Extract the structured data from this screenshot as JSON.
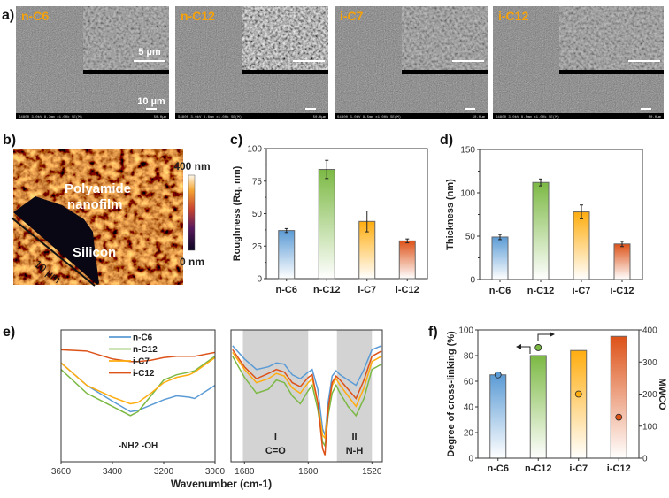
{
  "panel_labels": {
    "a": "a)",
    "b": "b)",
    "c": "c)",
    "d": "d)",
    "e": "e)",
    "f": "f)"
  },
  "sem": {
    "panels": [
      {
        "label": "n-C6",
        "info": "S4800 3.0kV 8.7mm x1.00k SE(M)",
        "scale": "50.0µm"
      },
      {
        "label": "n-C12",
        "info": "S4800 3.0kV 8.6mm x1.00k SE(M)",
        "scale": "50.0µm"
      },
      {
        "label": "i-C7",
        "info": "S4800 3.0kV 8.5mm x1.00k SE(M)",
        "scale": "50.0µm"
      },
      {
        "label": "i-C12",
        "info": "S4800 3.0kV 8.5mm x1.00k SE(M)",
        "scale": "50.0µm"
      }
    ],
    "inset_scale_label": "5 µm",
    "main_scale_label": "10 µm"
  },
  "afm": {
    "film_label_1": "Polyamide",
    "film_label_2": "nanofilm",
    "substrate_label": "Silicon",
    "scale_label": "10 µm",
    "colorbar_max": "400 nm",
    "colorbar_min": "0 nm"
  },
  "colors": {
    "n-C6": "#5b9bd5",
    "n-C12": "#7cb944",
    "i-C7": "#ffad0f",
    "i-C12": "#dd5218"
  },
  "chart_data": [
    {
      "id": "c",
      "type": "bar",
      "categories": [
        "n-C6",
        "n-C12",
        "i-C7",
        "i-C12"
      ],
      "values": [
        37,
        84,
        44,
        29
      ],
      "errors": [
        1.5,
        7,
        8,
        1.5
      ],
      "ylabel": "Roughness (Rq, nm)",
      "ylim": [
        0,
        100
      ],
      "yticks": [
        0,
        25,
        50,
        75,
        100
      ]
    },
    {
      "id": "d",
      "type": "bar",
      "categories": [
        "n-C6",
        "n-C12",
        "i-C7",
        "i-C12"
      ],
      "values": [
        49,
        112,
        78,
        41
      ],
      "errors": [
        3,
        4,
        8,
        3
      ],
      "ylabel": "Thickness (nm)",
      "ylim": [
        0,
        150
      ],
      "yticks": [
        0,
        50,
        100,
        150
      ]
    },
    {
      "id": "e",
      "type": "line",
      "xlabel": "Wavenumber (cm-1)",
      "legend": [
        "n-C6",
        "n-C12",
        "i-C7",
        "i-C12"
      ],
      "legend_position": "top-left",
      "left": {
        "xlim": [
          3600,
          3000
        ],
        "xticks": [
          3600,
          3400,
          3200,
          3000
        ],
        "annotation": "-NH2  -OH",
        "x": [
          3600,
          3500,
          3400,
          3330,
          3300,
          3250,
          3200,
          3150,
          3100,
          3080,
          3000
        ],
        "series": [
          {
            "name": "n-C6",
            "values": [
              0.75,
              0.58,
              0.46,
              0.38,
              0.39,
              0.43,
              0.47,
              0.5,
              0.49,
              0.48,
              0.58
            ]
          },
          {
            "name": "n-C12",
            "values": [
              0.7,
              0.52,
              0.42,
              0.35,
              0.38,
              0.5,
              0.62,
              0.66,
              0.68,
              0.69,
              0.8
            ]
          },
          {
            "name": "i-C7",
            "values": [
              0.75,
              0.58,
              0.49,
              0.44,
              0.45,
              0.52,
              0.6,
              0.64,
              0.66,
              0.68,
              0.79
            ]
          },
          {
            "name": "i-C12",
            "values": [
              0.85,
              0.84,
              0.78,
              0.76,
              0.76,
              0.77,
              0.79,
              0.8,
              0.8,
              0.8,
              0.83
            ]
          }
        ]
      },
      "right": {
        "xlim": [
          1697,
          1507
        ],
        "xticks": [
          1680,
          1600,
          1520
        ],
        "bands": [
          {
            "range": [
              1682,
              1600
            ],
            "label": "I",
            "sublabel": "C=O"
          },
          {
            "range": [
              1564,
              1520
            ],
            "label": "II",
            "sublabel": "N-H"
          }
        ],
        "x": [
          1695,
          1680,
          1665,
          1650,
          1640,
          1630,
          1620,
          1610,
          1600,
          1595,
          1588,
          1582,
          1579,
          1575,
          1570,
          1565,
          1560,
          1550,
          1540,
          1530,
          1520,
          1508
        ],
        "series": [
          {
            "name": "n-C6",
            "values": [
              0.88,
              0.78,
              0.7,
              0.72,
              0.75,
              0.74,
              0.66,
              0.63,
              0.68,
              0.7,
              0.55,
              0.25,
              0.2,
              0.45,
              0.65,
              0.69,
              0.66,
              0.62,
              0.58,
              0.7,
              0.85,
              0.88
            ]
          },
          {
            "name": "n-C12",
            "values": [
              0.8,
              0.64,
              0.52,
              0.55,
              0.62,
              0.6,
              0.5,
              0.44,
              0.54,
              0.58,
              0.4,
              0.15,
              0.12,
              0.35,
              0.52,
              0.58,
              0.52,
              0.42,
              0.35,
              0.48,
              0.7,
              0.74
            ]
          },
          {
            "name": "i-C7",
            "values": [
              0.83,
              0.7,
              0.6,
              0.63,
              0.67,
              0.65,
              0.56,
              0.52,
              0.6,
              0.63,
              0.45,
              0.2,
              0.18,
              0.4,
              0.58,
              0.63,
              0.58,
              0.5,
              0.42,
              0.56,
              0.76,
              0.8
            ]
          },
          {
            "name": "i-C12",
            "values": [
              0.85,
              0.72,
              0.63,
              0.67,
              0.7,
              0.68,
              0.6,
              0.57,
              0.64,
              0.66,
              0.45,
              0.1,
              0.05,
              0.4,
              0.6,
              0.65,
              0.62,
              0.55,
              0.48,
              0.62,
              0.8,
              0.84
            ]
          }
        ]
      }
    },
    {
      "id": "f",
      "type": "bar+scatter",
      "categories": [
        "n-C6",
        "n-C12",
        "i-C7",
        "i-C12"
      ],
      "bars": {
        "name": "Degree of cross-linking (%)",
        "values": [
          65,
          80,
          84,
          95
        ]
      },
      "points": {
        "name": "MWCO",
        "values": [
          260,
          345,
          200,
          128
        ]
      },
      "ylabel": "Degree of cross-linking (%)",
      "y2label": "MWCO",
      "ylim": [
        0,
        100
      ],
      "yticks": [
        0,
        20,
        40,
        60,
        80,
        100
      ],
      "y2lim": [
        0,
        400
      ],
      "y2ticks": [
        0,
        100,
        200,
        300,
        400
      ]
    }
  ]
}
